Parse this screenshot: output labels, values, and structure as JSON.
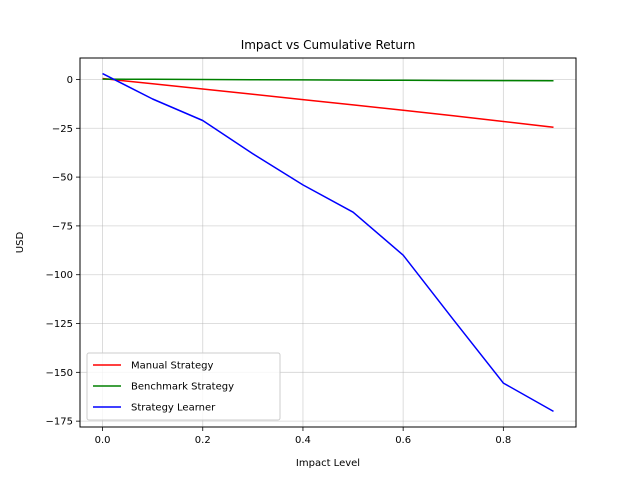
{
  "chart_data": {
    "type": "line",
    "title": "Impact vs Cumulative Return",
    "xlabel": "Impact Level",
    "ylabel": "USD",
    "xlim": [
      -0.045,
      0.945
    ],
    "ylim": [
      -178,
      11
    ],
    "x_ticks": [
      0.0,
      0.2,
      0.4,
      0.6,
      0.8
    ],
    "x_tick_labels": [
      "0.0",
      "0.2",
      "0.4",
      "0.6",
      "0.8"
    ],
    "y_ticks": [
      0,
      -25,
      -50,
      -75,
      -100,
      -125,
      -150,
      -175
    ],
    "y_tick_labels": [
      "0",
      "−25",
      "−50",
      "−75",
      "−100",
      "−125",
      "−150",
      "−175"
    ],
    "grid": true,
    "legend_position": "lower-left",
    "series": [
      {
        "name": "Manual Strategy",
        "color": "#ff0000",
        "x": [
          0.0,
          0.1,
          0.2,
          0.3,
          0.4,
          0.5,
          0.6,
          0.7,
          0.8,
          0.9
        ],
        "y": [
          0.5,
          -2.2,
          -4.9,
          -7.6,
          -10.3,
          -13.0,
          -15.8,
          -18.6,
          -21.5,
          -24.5
        ]
      },
      {
        "name": "Benchmark Strategy",
        "color": "#008000",
        "x": [
          0.0,
          0.1,
          0.2,
          0.3,
          0.4,
          0.5,
          0.6,
          0.7,
          0.8,
          0.9
        ],
        "y": [
          0.2,
          0.1,
          0.0,
          -0.1,
          -0.2,
          -0.3,
          -0.4,
          -0.5,
          -0.6,
          -0.7
        ]
      },
      {
        "name": "Strategy Learner",
        "color": "#0000ff",
        "x": [
          0.0,
          0.1,
          0.2,
          0.3,
          0.4,
          0.5,
          0.6,
          0.7,
          0.8,
          0.9
        ],
        "y": [
          3.0,
          -10.0,
          -21.0,
          -38.0,
          -54.0,
          -68.0,
          -90.0,
          -123.0,
          -155.5,
          -170.0
        ]
      }
    ]
  }
}
